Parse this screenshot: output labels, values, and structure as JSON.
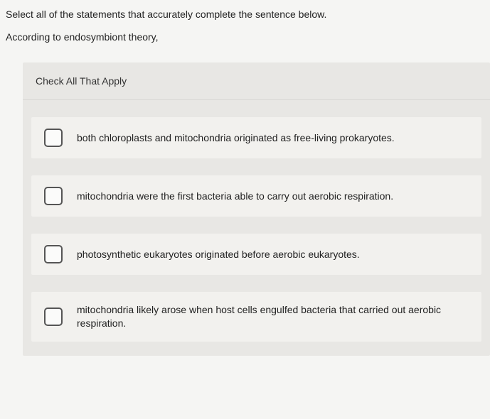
{
  "prompt": {
    "line1": "Select all of the statements that accurately complete the sentence below.",
    "line2": "According to endosymbiont theory,"
  },
  "panel": {
    "header": "Check All That Apply"
  },
  "options": [
    {
      "text": "both chloroplasts and mitochondria originated as free-living prokaryotes."
    },
    {
      "text": "mitochondria were the first bacteria able to carry out aerobic respiration."
    },
    {
      "text": "photosynthetic eukaryotes originated before aerobic eukaryotes."
    },
    {
      "text": "mitochondria likely arose when host cells engulfed bacteria that carried out aerobic respiration."
    }
  ],
  "colors": {
    "page_bg": "#f5f5f3",
    "panel_bg": "#e8e7e4",
    "row_bg": "#f2f1ee",
    "text": "#222222",
    "checkbox_border": "#555555"
  }
}
